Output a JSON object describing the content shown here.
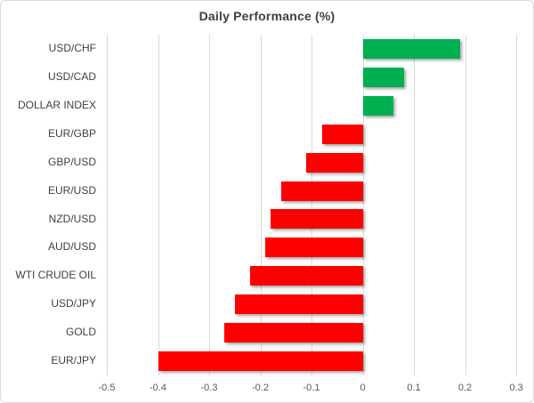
{
  "chart_data": {
    "type": "bar",
    "orientation": "horizontal",
    "title": "Daily Performance (%)",
    "categories": [
      "USD/CHF",
      "USD/CAD",
      "DOLLAR INDEX",
      "EUR/GBP",
      "GBP/USD",
      "EUR/USD",
      "NZD/USD",
      "AUD/USD",
      "WTI CRUDE OIL",
      "USD/JPY",
      "GOLD",
      "EUR/JPY"
    ],
    "values": [
      0.19,
      0.08,
      0.06,
      -0.08,
      -0.11,
      -0.16,
      -0.18,
      -0.19,
      -0.22,
      -0.25,
      -0.27,
      -0.4
    ],
    "xlim": [
      -0.5,
      0.3
    ],
    "x_ticks": [
      -0.5,
      -0.4,
      -0.3,
      -0.2,
      -0.1,
      0,
      0.1,
      0.2,
      0.3
    ],
    "x_tick_labels": [
      "-0.5",
      "-0.4",
      "-0.3",
      "-0.2",
      "-0.1",
      "0",
      "0.1",
      "0.2",
      "0.3"
    ],
    "grid": true,
    "legend": "none",
    "colors": {
      "positive": "#00B050",
      "negative": "#FF0000",
      "gridline": "#d9d9d9",
      "title_text": "#3f3f3f",
      "category_text": "#404040",
      "tick_text": "#595959",
      "border": "#d9d9d9"
    }
  }
}
